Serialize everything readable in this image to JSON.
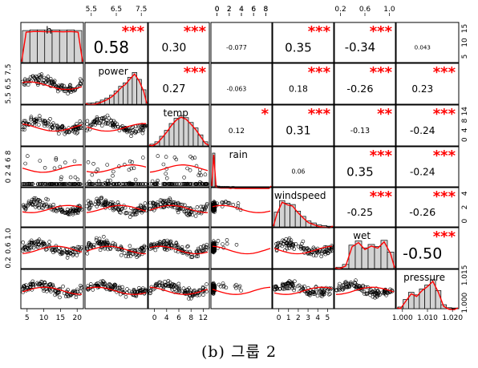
{
  "caption": "(b) 그룹 2",
  "colors": {
    "fit_line": "#ff0000",
    "stars": "#ff0000",
    "bar_fill": "#d3d3d3",
    "frame": "#000000"
  },
  "chart_data": {
    "type": "scatter-matrix",
    "variables": [
      "h",
      "power",
      "temp",
      "rain",
      "windspeed",
      "wet",
      "pressure"
    ],
    "correlations": [
      {
        "row": "h",
        "col": "power",
        "r": "0.58",
        "stars": "***"
      },
      {
        "row": "h",
        "col": "temp",
        "r": "0.30",
        "stars": "***"
      },
      {
        "row": "h",
        "col": "rain",
        "r": "-0.077",
        "stars": ""
      },
      {
        "row": "h",
        "col": "windspeed",
        "r": "0.35",
        "stars": "***"
      },
      {
        "row": "h",
        "col": "wet",
        "r": "-0.34",
        "stars": "***"
      },
      {
        "row": "h",
        "col": "pressure",
        "r": "0.043",
        "stars": ""
      },
      {
        "row": "power",
        "col": "temp",
        "r": "0.27",
        "stars": "***"
      },
      {
        "row": "power",
        "col": "rain",
        "r": "-0.063",
        "stars": ""
      },
      {
        "row": "power",
        "col": "windspeed",
        "r": "0.18",
        "stars": "***"
      },
      {
        "row": "power",
        "col": "wet",
        "r": "-0.26",
        "stars": "***"
      },
      {
        "row": "power",
        "col": "pressure",
        "r": "0.23",
        "stars": "***"
      },
      {
        "row": "temp",
        "col": "rain",
        "r": "0.12",
        "stars": "*"
      },
      {
        "row": "temp",
        "col": "windspeed",
        "r": "0.31",
        "stars": "***"
      },
      {
        "row": "temp",
        "col": "wet",
        "r": "-0.13",
        "stars": "**"
      },
      {
        "row": "temp",
        "col": "pressure",
        "r": "-0.24",
        "stars": "***"
      },
      {
        "row": "rain",
        "col": "windspeed",
        "r": "0.06",
        "stars": ""
      },
      {
        "row": "rain",
        "col": "wet",
        "r": "0.35",
        "stars": "***"
      },
      {
        "row": "rain",
        "col": "pressure",
        "r": "-0.24",
        "stars": "***"
      },
      {
        "row": "windspeed",
        "col": "wet",
        "r": "-0.25",
        "stars": "***"
      },
      {
        "row": "windspeed",
        "col": "pressure",
        "r": "-0.26",
        "stars": "***"
      },
      {
        "row": "wet",
        "col": "pressure",
        "r": "-0.50",
        "stars": "***"
      }
    ],
    "histograms": {
      "h": [
        0.95,
        0.97,
        0.97,
        0.96,
        0.97,
        0.96,
        0.97,
        0.95
      ],
      "power": [
        0.03,
        0.04,
        0.07,
        0.12,
        0.18,
        0.26,
        0.38,
        0.52,
        0.62,
        0.78,
        0.92,
        0.72,
        0.42
      ],
      "temp": [
        0.05,
        0.12,
        0.28,
        0.45,
        0.65,
        0.8,
        0.88,
        0.82,
        0.68,
        0.52,
        0.32,
        0.12
      ],
      "rain": [
        1.0,
        0.03,
        0.02,
        0.01,
        0.01,
        0.01,
        0.01,
        0.0,
        0.01,
        0.0,
        0.0,
        0.0,
        0.0,
        0.0,
        0.0,
        0.0,
        0.0,
        0.0,
        0.0,
        0.0,
        0.0,
        0.0,
        0.0,
        0.0
      ],
      "windspeed": [
        0.45,
        0.8,
        0.72,
        0.68,
        0.48,
        0.32,
        0.18,
        0.12,
        0.06,
        0.04,
        0.02
      ],
      "wet": [
        0.04,
        0.12,
        0.68,
        0.8,
        0.6,
        0.7,
        0.64,
        0.82,
        0.48
      ],
      "pressure": [
        0.05,
        0.28,
        0.5,
        0.42,
        0.6,
        0.72,
        0.88,
        0.55,
        0.12,
        0.03,
        0.02
      ]
    },
    "axis_ticks": {
      "h": [
        "5",
        "10",
        "15",
        "20"
      ],
      "power": [
        "5.5",
        "6.5",
        "7.5"
      ],
      "temp": [
        "0",
        "4",
        "6",
        "8",
        "12"
      ],
      "rain": [
        "0",
        "2",
        "4",
        "6",
        "8"
      ],
      "windspeed": [
        "0",
        "1",
        "2",
        "3",
        "4",
        "5"
      ],
      "wet": [
        "0.2",
        "0.6",
        "1.0"
      ],
      "pressure": [
        "1.000",
        "1.010",
        "1.020"
      ]
    },
    "axis_ticks_right": {
      "h": [
        "5",
        "10",
        "15"
      ],
      "temp": [
        "0",
        "4",
        "8",
        "14"
      ],
      "windspeed": [
        "0",
        "2",
        "4"
      ],
      "pressure": [
        "1.000",
        "1.015"
      ]
    },
    "axis_ticks_top": {
      "power": [
        "5.5",
        "6.5",
        "7.5"
      ],
      "rain": [
        "0",
        "2",
        "4",
        "6",
        "8"
      ],
      "wet": [
        "0.2",
        "0.6",
        "1.0"
      ]
    },
    "axis_ticks_left": {
      "power": [
        "5.5",
        "6.5",
        "7.5"
      ],
      "rain": [
        "0",
        "2",
        "4",
        "6",
        "8"
      ],
      "wet": [
        "0.2",
        "0.6",
        "1.0"
      ]
    }
  }
}
